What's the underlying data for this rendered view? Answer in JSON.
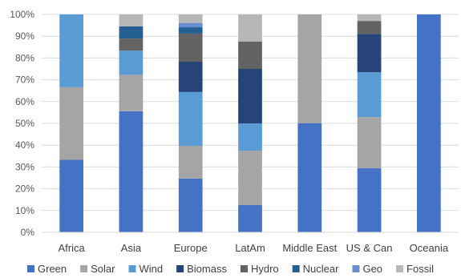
{
  "chart_data": {
    "type": "bar",
    "stacked": true,
    "percent": true,
    "ylim": [
      0,
      100
    ],
    "y_ticks": [
      "0%",
      "10%",
      "20%",
      "30%",
      "40%",
      "50%",
      "60%",
      "70%",
      "80%",
      "90%",
      "100%"
    ],
    "y_tick_values": [
      0,
      10,
      20,
      30,
      40,
      50,
      60,
      70,
      80,
      90,
      100
    ],
    "grid": true,
    "legend_position": "bottom",
    "categories": [
      "Africa",
      "Asia",
      "Europe",
      "LatAm",
      "Middle East",
      "US & Can",
      "Oceania"
    ],
    "series": [
      {
        "name": "Green",
        "color": "#4472c4",
        "values": [
          33.3,
          55.6,
          24.7,
          12.5,
          50.0,
          29.4,
          100.0
        ]
      },
      {
        "name": "Solar",
        "color": "#a5a5a5",
        "values": [
          33.3,
          16.7,
          15.0,
          25.0,
          50.0,
          23.5,
          0.0
        ]
      },
      {
        "name": "Wind",
        "color": "#5b9bd5",
        "values": [
          33.4,
          11.1,
          24.7,
          12.5,
          0.0,
          20.6,
          0.0
        ]
      },
      {
        "name": "Biomass",
        "color": "#264478",
        "values": [
          0.0,
          0.0,
          13.9,
          25.0,
          0.0,
          17.6,
          0.0
        ]
      },
      {
        "name": "Hydro",
        "color": "#636363",
        "values": [
          0.0,
          5.5,
          12.9,
          12.5,
          0.0,
          5.9,
          0.0
        ]
      },
      {
        "name": "Nuclear",
        "color": "#255e91",
        "values": [
          0.0,
          5.6,
          2.9,
          0.0,
          0.0,
          0.0,
          0.0
        ]
      },
      {
        "name": "Geo",
        "color": "#698ed0",
        "values": [
          0.0,
          0.0,
          2.0,
          0.0,
          0.0,
          0.0,
          0.0
        ]
      },
      {
        "name": "Fossil",
        "color": "#b7b7b7",
        "values": [
          0.0,
          5.5,
          3.9,
          12.5,
          0.0,
          3.0,
          0.0
        ]
      }
    ]
  }
}
